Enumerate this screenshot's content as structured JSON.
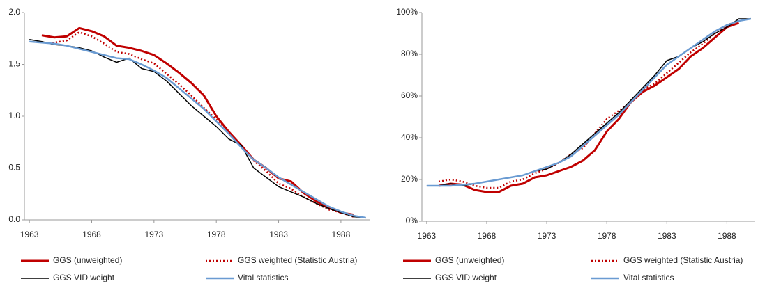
{
  "chart_data": [
    {
      "type": "line",
      "x": [
        1963,
        1964,
        1965,
        1966,
        1967,
        1968,
        1969,
        1970,
        1971,
        1972,
        1973,
        1974,
        1975,
        1976,
        1977,
        1978,
        1979,
        1980,
        1981,
        1982,
        1983,
        1984,
        1985,
        1986,
        1987,
        1988,
        1989,
        1990
      ],
      "xlim": [
        1962.6,
        1990.3
      ],
      "xticks": [
        1963,
        1968,
        1973,
        1978,
        1983,
        1988
      ],
      "ylim": [
        0,
        2
      ],
      "yticks": [
        {
          "value": 0,
          "label": "0.0"
        },
        {
          "value": 0.5,
          "label": "0.5"
        },
        {
          "value": 1,
          "label": "1.0"
        },
        {
          "value": 1.5,
          "label": "1.5"
        },
        {
          "value": 2,
          "label": "2.0"
        }
      ],
      "series": [
        {
          "name": "GGS (unweighted)",
          "color": "#c00000",
          "line_style": "solid",
          "line_width": 3,
          "values": [
            null,
            1.78,
            1.76,
            1.77,
            1.85,
            1.82,
            1.77,
            1.68,
            1.66,
            1.63,
            1.59,
            1.51,
            1.42,
            1.32,
            1.2,
            1.0,
            0.85,
            0.72,
            0.58,
            0.5,
            0.4,
            0.37,
            0.26,
            0.18,
            0.12,
            0.07,
            0.05,
            null
          ]
        },
        {
          "name": "GGS weighted (Statistic Austria)",
          "color": "#c00000",
          "line_style": "dotted",
          "line_width": 2.5,
          "values": [
            null,
            1.71,
            1.71,
            1.73,
            1.81,
            1.77,
            1.7,
            1.62,
            1.6,
            1.55,
            1.51,
            1.41,
            1.31,
            1.2,
            1.08,
            0.97,
            0.83,
            0.72,
            0.57,
            0.47,
            0.35,
            0.3,
            0.22,
            0.16,
            0.1,
            0.07,
            0.03,
            null
          ]
        },
        {
          "name": "GGS VID weight",
          "color": "#000000",
          "line_style": "solid",
          "line_width": 1.5,
          "values": [
            1.74,
            1.72,
            1.69,
            1.68,
            1.66,
            1.63,
            1.57,
            1.52,
            1.56,
            1.46,
            1.43,
            1.34,
            1.22,
            1.1,
            1.0,
            0.9,
            0.78,
            0.72,
            0.5,
            0.41,
            0.32,
            0.27,
            0.22,
            0.16,
            0.11,
            0.07,
            0.03,
            0.02
          ]
        },
        {
          "name": "Vital statistics",
          "color": "#6a9bd2",
          "line_style": "solid",
          "line_width": 2.5,
          "values": [
            1.72,
            1.71,
            1.7,
            1.68,
            1.65,
            1.62,
            1.59,
            1.56,
            1.55,
            1.5,
            1.44,
            1.37,
            1.27,
            1.17,
            1.07,
            0.95,
            0.83,
            0.7,
            0.58,
            0.5,
            0.41,
            0.34,
            0.27,
            0.2,
            0.13,
            0.08,
            0.04,
            0.02
          ]
        }
      ]
    },
    {
      "type": "line",
      "x": [
        1963,
        1964,
        1965,
        1966,
        1967,
        1968,
        1969,
        1970,
        1971,
        1972,
        1973,
        1974,
        1975,
        1976,
        1977,
        1978,
        1979,
        1980,
        1981,
        1982,
        1983,
        1984,
        1985,
        1986,
        1987,
        1988,
        1989,
        1990
      ],
      "xlim": [
        1962.6,
        1990.3
      ],
      "xticks": [
        1963,
        1968,
        1973,
        1978,
        1983,
        1988
      ],
      "ylim": [
        0,
        100
      ],
      "yticks": [
        {
          "value": 0,
          "label": "0%"
        },
        {
          "value": 20,
          "label": "20%"
        },
        {
          "value": 40,
          "label": "40%"
        },
        {
          "value": 60,
          "label": "60%"
        },
        {
          "value": 80,
          "label": "80%"
        },
        {
          "value": 100,
          "label": "100%"
        }
      ],
      "series": [
        {
          "name": "GGS (unweighted)",
          "color": "#c00000",
          "line_style": "solid",
          "line_width": 3,
          "values": [
            null,
            17,
            18,
            17.5,
            15,
            14,
            14,
            17,
            18,
            21,
            22,
            24,
            26,
            29,
            34,
            43,
            49,
            57,
            62,
            65,
            69,
            73,
            79,
            83,
            88,
            93,
            95,
            null
          ]
        },
        {
          "name": "GGS weighted (Statistic Austria)",
          "color": "#c00000",
          "line_style": "dotted",
          "line_width": 2.5,
          "values": [
            null,
            19,
            20,
            19,
            17,
            16,
            16,
            19,
            20,
            23,
            25,
            28,
            32,
            35,
            42,
            49,
            53,
            57,
            63,
            66,
            71,
            76,
            81,
            85,
            90,
            94,
            96,
            null
          ]
        },
        {
          "name": "GGS VID weight",
          "color": "#000000",
          "line_style": "solid",
          "line_width": 1.5,
          "values": [
            17,
            17,
            18,
            17,
            18,
            19,
            20,
            21,
            22,
            24,
            25,
            28,
            32,
            37,
            42,
            47,
            52,
            58,
            64,
            70,
            77,
            79,
            83,
            86,
            90,
            93,
            97,
            97
          ]
        },
        {
          "name": "Vital statistics",
          "color": "#6a9bd2",
          "line_style": "solid",
          "line_width": 2.5,
          "values": [
            17,
            17,
            17,
            17.5,
            18,
            19,
            20,
            21,
            22,
            24,
            26,
            28,
            31,
            36,
            41,
            46,
            51,
            57,
            63,
            69,
            75,
            79,
            83,
            87,
            91,
            94,
            96,
            97
          ]
        }
      ]
    }
  ]
}
